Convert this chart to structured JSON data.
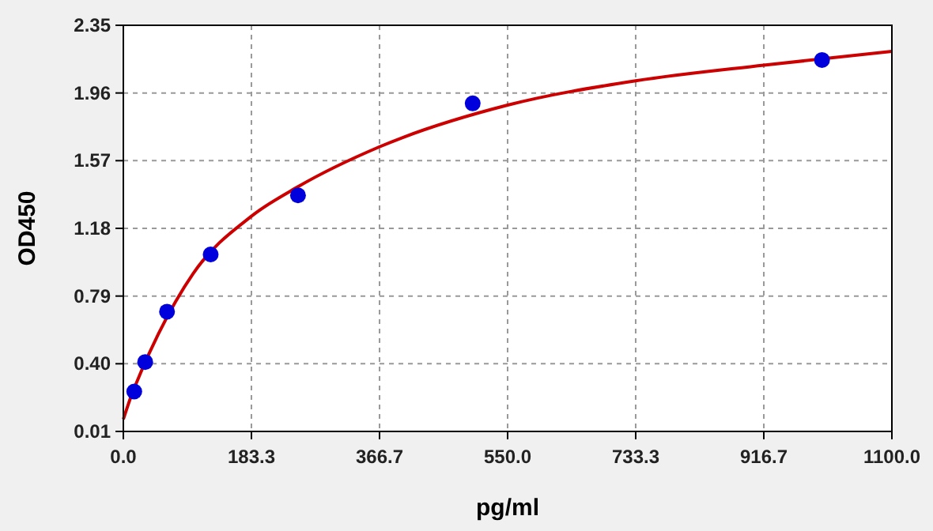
{
  "chart_data": {
    "type": "scatter",
    "xlabel": "pg/ml",
    "ylabel": "OD450",
    "xlim": [
      0,
      1100
    ],
    "ylim": [
      0.01,
      2.35
    ],
    "xticks": [
      {
        "value": 0,
        "label": "0.0"
      },
      183.3,
      366.7,
      {
        "value": 550,
        "label": "550.0"
      },
      733.3,
      916.7,
      {
        "value": 1100,
        "label": "1100.0"
      }
    ],
    "yticks": [
      0.01,
      {
        "value": 0.4,
        "label": "0.40"
      },
      0.79,
      1.18,
      1.57,
      1.96,
      2.35
    ],
    "grid": true,
    "series": [
      {
        "type": "line",
        "color": "#cc0000",
        "line_style": "solid",
        "x": [
          0,
          10,
          25,
          50,
          100,
          183.3,
          250,
          366.7,
          550,
          733.3,
          916.7,
          1100
        ],
        "values": [
          0.08,
          0.2,
          0.35,
          0.57,
          0.92,
          1.25,
          1.42,
          1.65,
          1.89,
          2.03,
          2.12,
          2.2
        ]
      },
      {
        "color": "#0000dd",
        "marker": "circle",
        "x": [
          15.6,
          31.25,
          62.5,
          125,
          250,
          500,
          1000
        ],
        "values": [
          0.24,
          0.41,
          0.7,
          1.03,
          1.37,
          1.9,
          2.15
        ]
      }
    ]
  }
}
